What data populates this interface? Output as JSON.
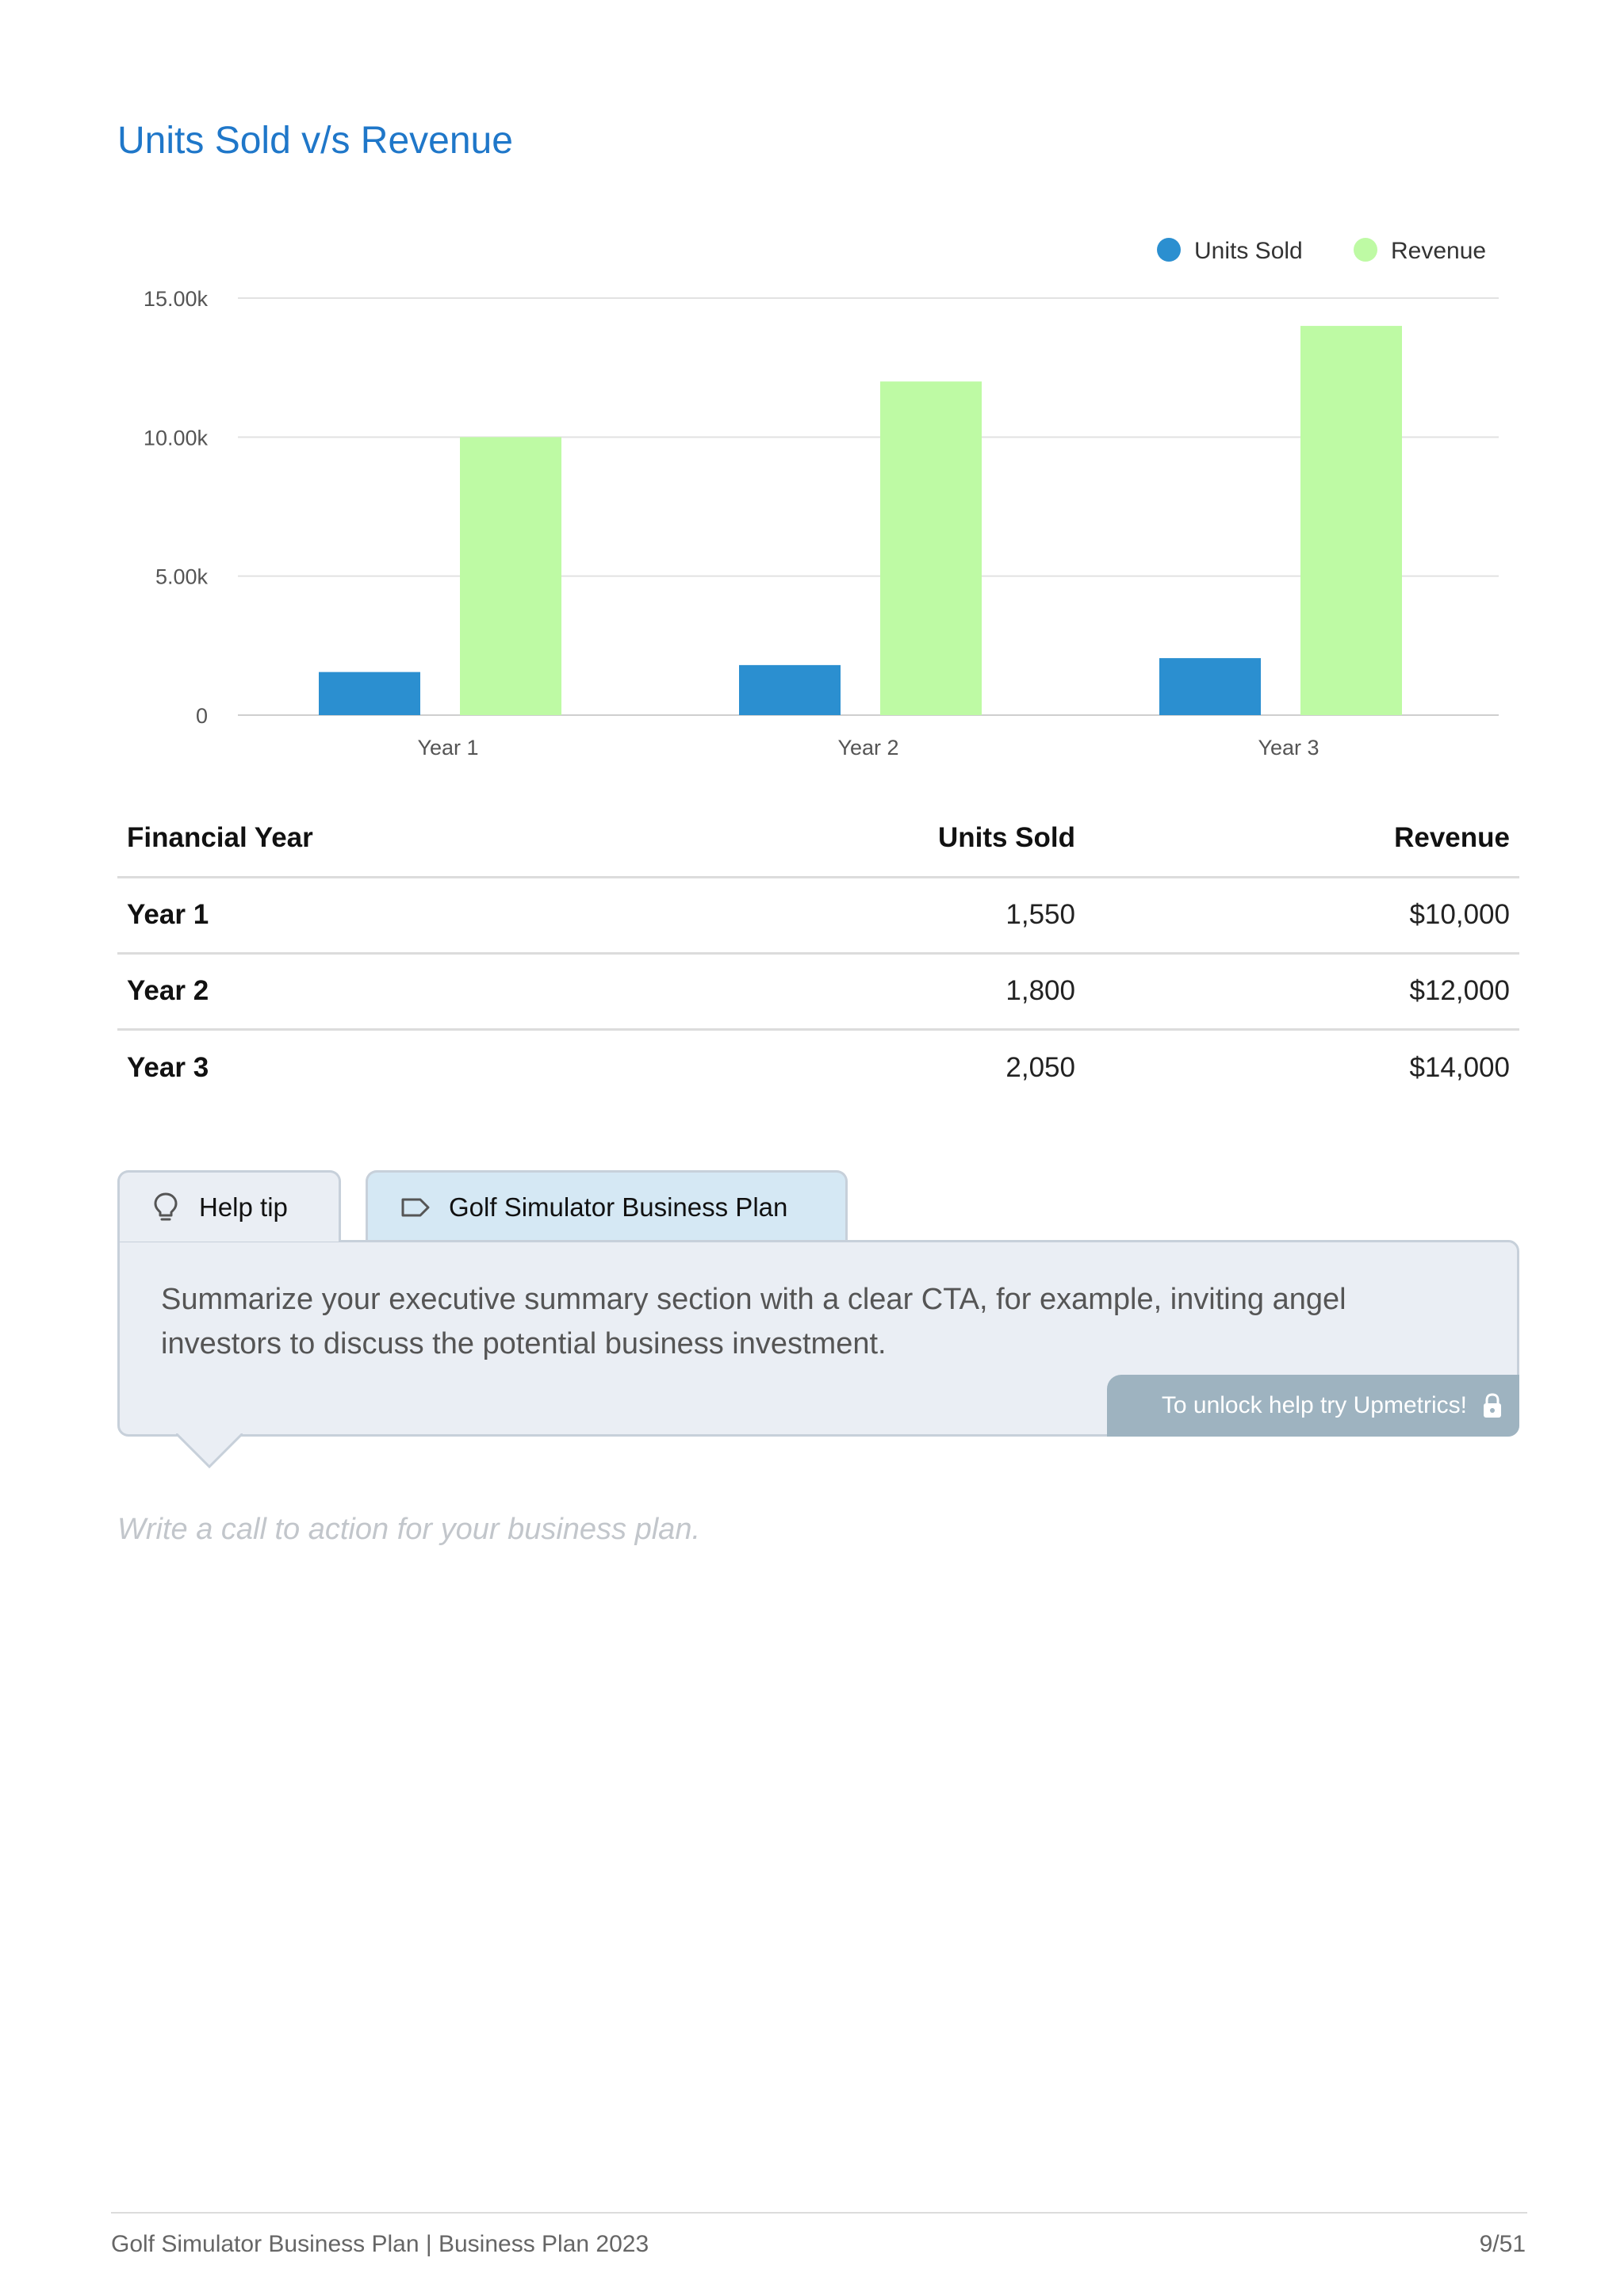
{
  "section": {
    "title": "Units Sold v/s Revenue"
  },
  "chart_data": {
    "type": "bar",
    "title": "",
    "categories": [
      "Year 1",
      "Year 2",
      "Year 3"
    ],
    "series": [
      {
        "name": "Units Sold",
        "values": [
          1550,
          1800,
          2050
        ],
        "color": "#2b8fd0"
      },
      {
        "name": "Revenue",
        "values": [
          10000,
          12000,
          14000
        ],
        "color": "#befaa4"
      }
    ],
    "yticks": [
      "0",
      "5.00k",
      "10.00k",
      "15.00k"
    ],
    "ylim": [
      0,
      15000
    ],
    "grid": true,
    "legend_position": "top-right",
    "xlabel": "",
    "ylabel": ""
  },
  "table": {
    "headers": [
      "Financial Year",
      "Units Sold",
      "Revenue"
    ],
    "rows": [
      [
        "Year 1",
        "1,550",
        "$10,000"
      ],
      [
        "Year 2",
        "1,800",
        "$12,000"
      ],
      [
        "Year 3",
        "2,050",
        "$14,000"
      ]
    ]
  },
  "help": {
    "tab_help_label": "Help tip",
    "tab_plan_label": "Golf Simulator Business Plan",
    "tip_text": "Summarize your executive summary section with a clear CTA, for example, inviting angel investors to discuss the potential business investment.",
    "unlock_label": "To unlock help try Upmetrics!",
    "icons": {
      "help": "lightbulb-icon",
      "plan": "tag-icon",
      "unlock": "lock-icon"
    }
  },
  "editor": {
    "placeholder": "Write a call to action for your business plan."
  },
  "footer": {
    "left": "Golf Simulator Business Plan | Business Plan 2023",
    "page": "9/51"
  }
}
